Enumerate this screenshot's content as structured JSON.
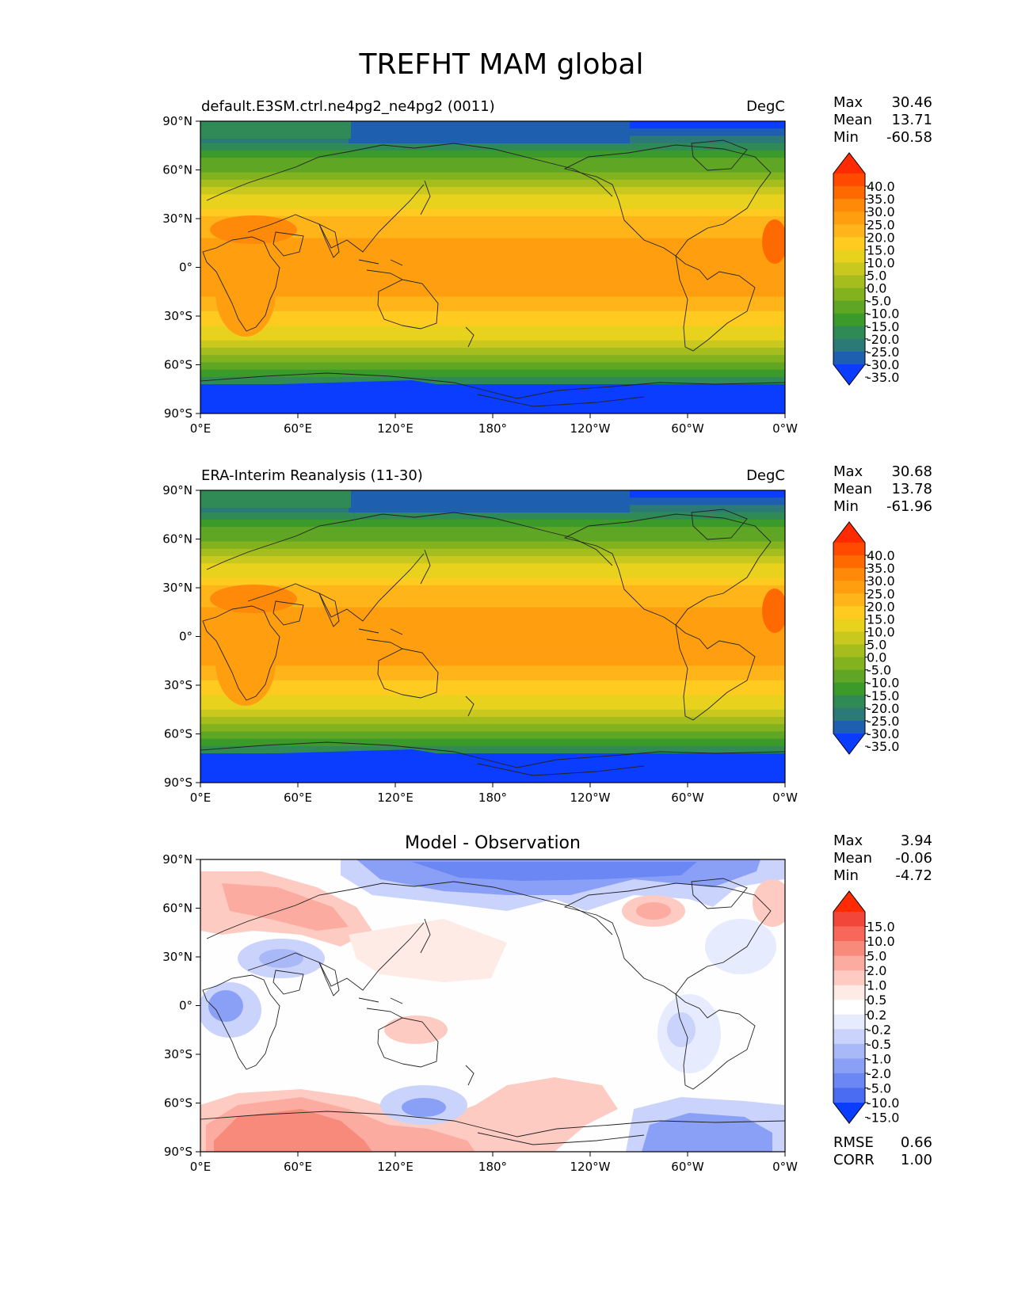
{
  "title": "TREFHT MAM global",
  "lat_ticks": [
    "90°N",
    "60°N",
    "30°N",
    "0°",
    "30°S",
    "60°S",
    "90°S"
  ],
  "lon_ticks": [
    "0°E",
    "60°E",
    "120°E",
    "180°",
    "120°W",
    "60°W",
    "0°W"
  ],
  "stat_labels": {
    "max": "Max",
    "mean": "Mean",
    "min": "Min",
    "rmse": "RMSE",
    "corr": "CORR"
  },
  "panels": [
    {
      "id": "model",
      "left_title": "default.E3SM.ctrl.ne4pg2_ne4pg2 (0011)",
      "center_title": "",
      "units": "DegC",
      "stats": {
        "max": "30.46",
        "mean": "13.71",
        "min": "-60.58"
      },
      "colorbar_labels": [
        "40.0",
        "35.0",
        "30.0",
        "25.0",
        "20.0",
        "15.0",
        "10.0",
        "5.0",
        "0.0",
        "-5.0",
        "-10.0",
        "-15.0",
        "-20.0",
        "-25.0",
        "-30.0",
        "-35.0"
      ],
      "colorbar_colors": [
        "#ff2a00",
        "#ff4a00",
        "#ff6a00",
        "#ff8a0a",
        "#ff9f10",
        "#ffb51a",
        "#ffcb20",
        "#e8d21e",
        "#c9c81e",
        "#a6bd1e",
        "#82b21e",
        "#5ea624",
        "#3b9a2a",
        "#2f8a55",
        "#2b7a78",
        "#1f5fb0",
        "#0a3dff"
      ],
      "contour_colors": [
        "#0a3dff",
        "#1f5fb0",
        "#2b7a78",
        "#2f8a55",
        "#3b9a2a",
        "#5ea624",
        "#82b21e",
        "#a6bd1e",
        "#c9c81e",
        "#e8d21e",
        "#ffcb20",
        "#ffb51a",
        "#ff9f10",
        "#ff8a0a"
      ]
    },
    {
      "id": "obs",
      "left_title": "ERA-Interim Reanalysis (11-30)",
      "center_title": "",
      "units": "DegC",
      "stats": {
        "max": "30.68",
        "mean": "13.78",
        "min": "-61.96"
      },
      "colorbar_labels": [
        "40.0",
        "35.0",
        "30.0",
        "25.0",
        "20.0",
        "15.0",
        "10.0",
        "5.0",
        "0.0",
        "-5.0",
        "-10.0",
        "-15.0",
        "-20.0",
        "-25.0",
        "-30.0",
        "-35.0"
      ],
      "colorbar_colors": [
        "#ff2a00",
        "#ff4a00",
        "#ff6a00",
        "#ff8a0a",
        "#ff9f10",
        "#ffb51a",
        "#ffcb20",
        "#e8d21e",
        "#c9c81e",
        "#a6bd1e",
        "#82b21e",
        "#5ea624",
        "#3b9a2a",
        "#2f8a55",
        "#2b7a78",
        "#1f5fb0",
        "#0a3dff"
      ],
      "contour_colors": [
        "#0a3dff",
        "#1f5fb0",
        "#2b7a78",
        "#2f8a55",
        "#3b9a2a",
        "#5ea624",
        "#82b21e",
        "#a6bd1e",
        "#c9c81e",
        "#e8d21e",
        "#ffcb20",
        "#ffb51a",
        "#ff9f10",
        "#ff8a0a"
      ]
    },
    {
      "id": "diff",
      "left_title": "",
      "center_title": "Model - Observation",
      "units": "",
      "stats": {
        "max": "3.94",
        "mean": "-0.06",
        "min": "-4.72"
      },
      "metrics": {
        "rmse": "0.66",
        "corr": "1.00"
      },
      "colorbar_labels": [
        "15.0",
        "10.0",
        "5.0",
        "2.0",
        "1.0",
        "0.5",
        "0.2",
        "-0.2",
        "-0.5",
        "-1.0",
        "-2.0",
        "-5.0",
        "-10.0",
        "-15.0"
      ],
      "colorbar_colors": [
        "#ff2a00",
        "#f2463a",
        "#f7685a",
        "#f88a7c",
        "#fbab9f",
        "#fdcbc2",
        "#feebe6",
        "#ffffff",
        "#e6ebfd",
        "#c9d3fb",
        "#a9b9f8",
        "#8aa0f6",
        "#6b87f4",
        "#4a6cf2",
        "#0a3dff"
      ]
    }
  ]
}
